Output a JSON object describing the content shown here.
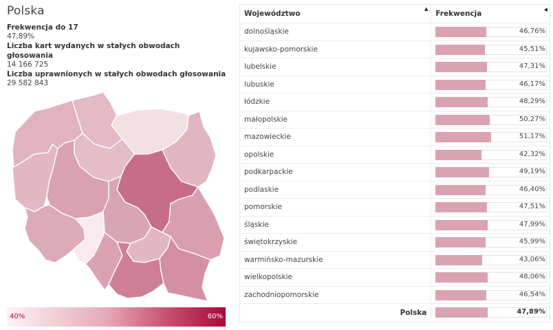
{
  "summary": {
    "title": "Polska",
    "turnout_label": "Frekwencja do 17",
    "turnout_value": "47,89%",
    "ballots_label": "Liczba kart wydanych w stałych obwodach głosowania",
    "ballots_value": "14 166 725",
    "voters_label": "Liczba uprawnionych w stałych obwodach głosowania",
    "voters_value": "29 582 843"
  },
  "legend": {
    "min_label": "40%",
    "max_label": "60%",
    "min_color": "#fbf3f5",
    "max_color": "#a6093b"
  },
  "table": {
    "col_region": "Województwo",
    "col_turnout": "Frekwencja",
    "sort_region_icon": "▲",
    "sort_turnout_icon": "◀",
    "rows": [
      {
        "name": "dolnośląskie",
        "value": "46,76%",
        "pct": 46.76
      },
      {
        "name": "kujawsko-pomorskie",
        "value": "45,51%",
        "pct": 45.51
      },
      {
        "name": "lubelskie",
        "value": "47,31%",
        "pct": 47.31
      },
      {
        "name": "lubuskie",
        "value": "46,17%",
        "pct": 46.17
      },
      {
        "name": "łódzkie",
        "value": "48,29%",
        "pct": 48.29
      },
      {
        "name": "małopolskie",
        "value": "50,27%",
        "pct": 50.27
      },
      {
        "name": "mazowieckie",
        "value": "51,17%",
        "pct": 51.17
      },
      {
        "name": "opolskie",
        "value": "42,32%",
        "pct": 42.32
      },
      {
        "name": "podkarpackie",
        "value": "49,19%",
        "pct": 49.19
      },
      {
        "name": "podlaskie",
        "value": "46,40%",
        "pct": 46.4
      },
      {
        "name": "pomorskie",
        "value": "47,51%",
        "pct": 47.51
      },
      {
        "name": "śląskie",
        "value": "47,99%",
        "pct": 47.99
      },
      {
        "name": "świętokrzyskie",
        "value": "45,99%",
        "pct": 45.99
      },
      {
        "name": "warmińsko-mazurskie",
        "value": "43,06%",
        "pct": 43.06
      },
      {
        "name": "wielkopolskie",
        "value": "48,06%",
        "pct": 48.06
      },
      {
        "name": "zachodniopomorskie",
        "value": "46,54%",
        "pct": 46.54
      }
    ],
    "total": {
      "name": "Polska",
      "value": "47,89%",
      "pct": 47.89
    }
  },
  "colors": {
    "bar": "#d9a3b2",
    "bar_border": "#e3e3e3"
  }
}
